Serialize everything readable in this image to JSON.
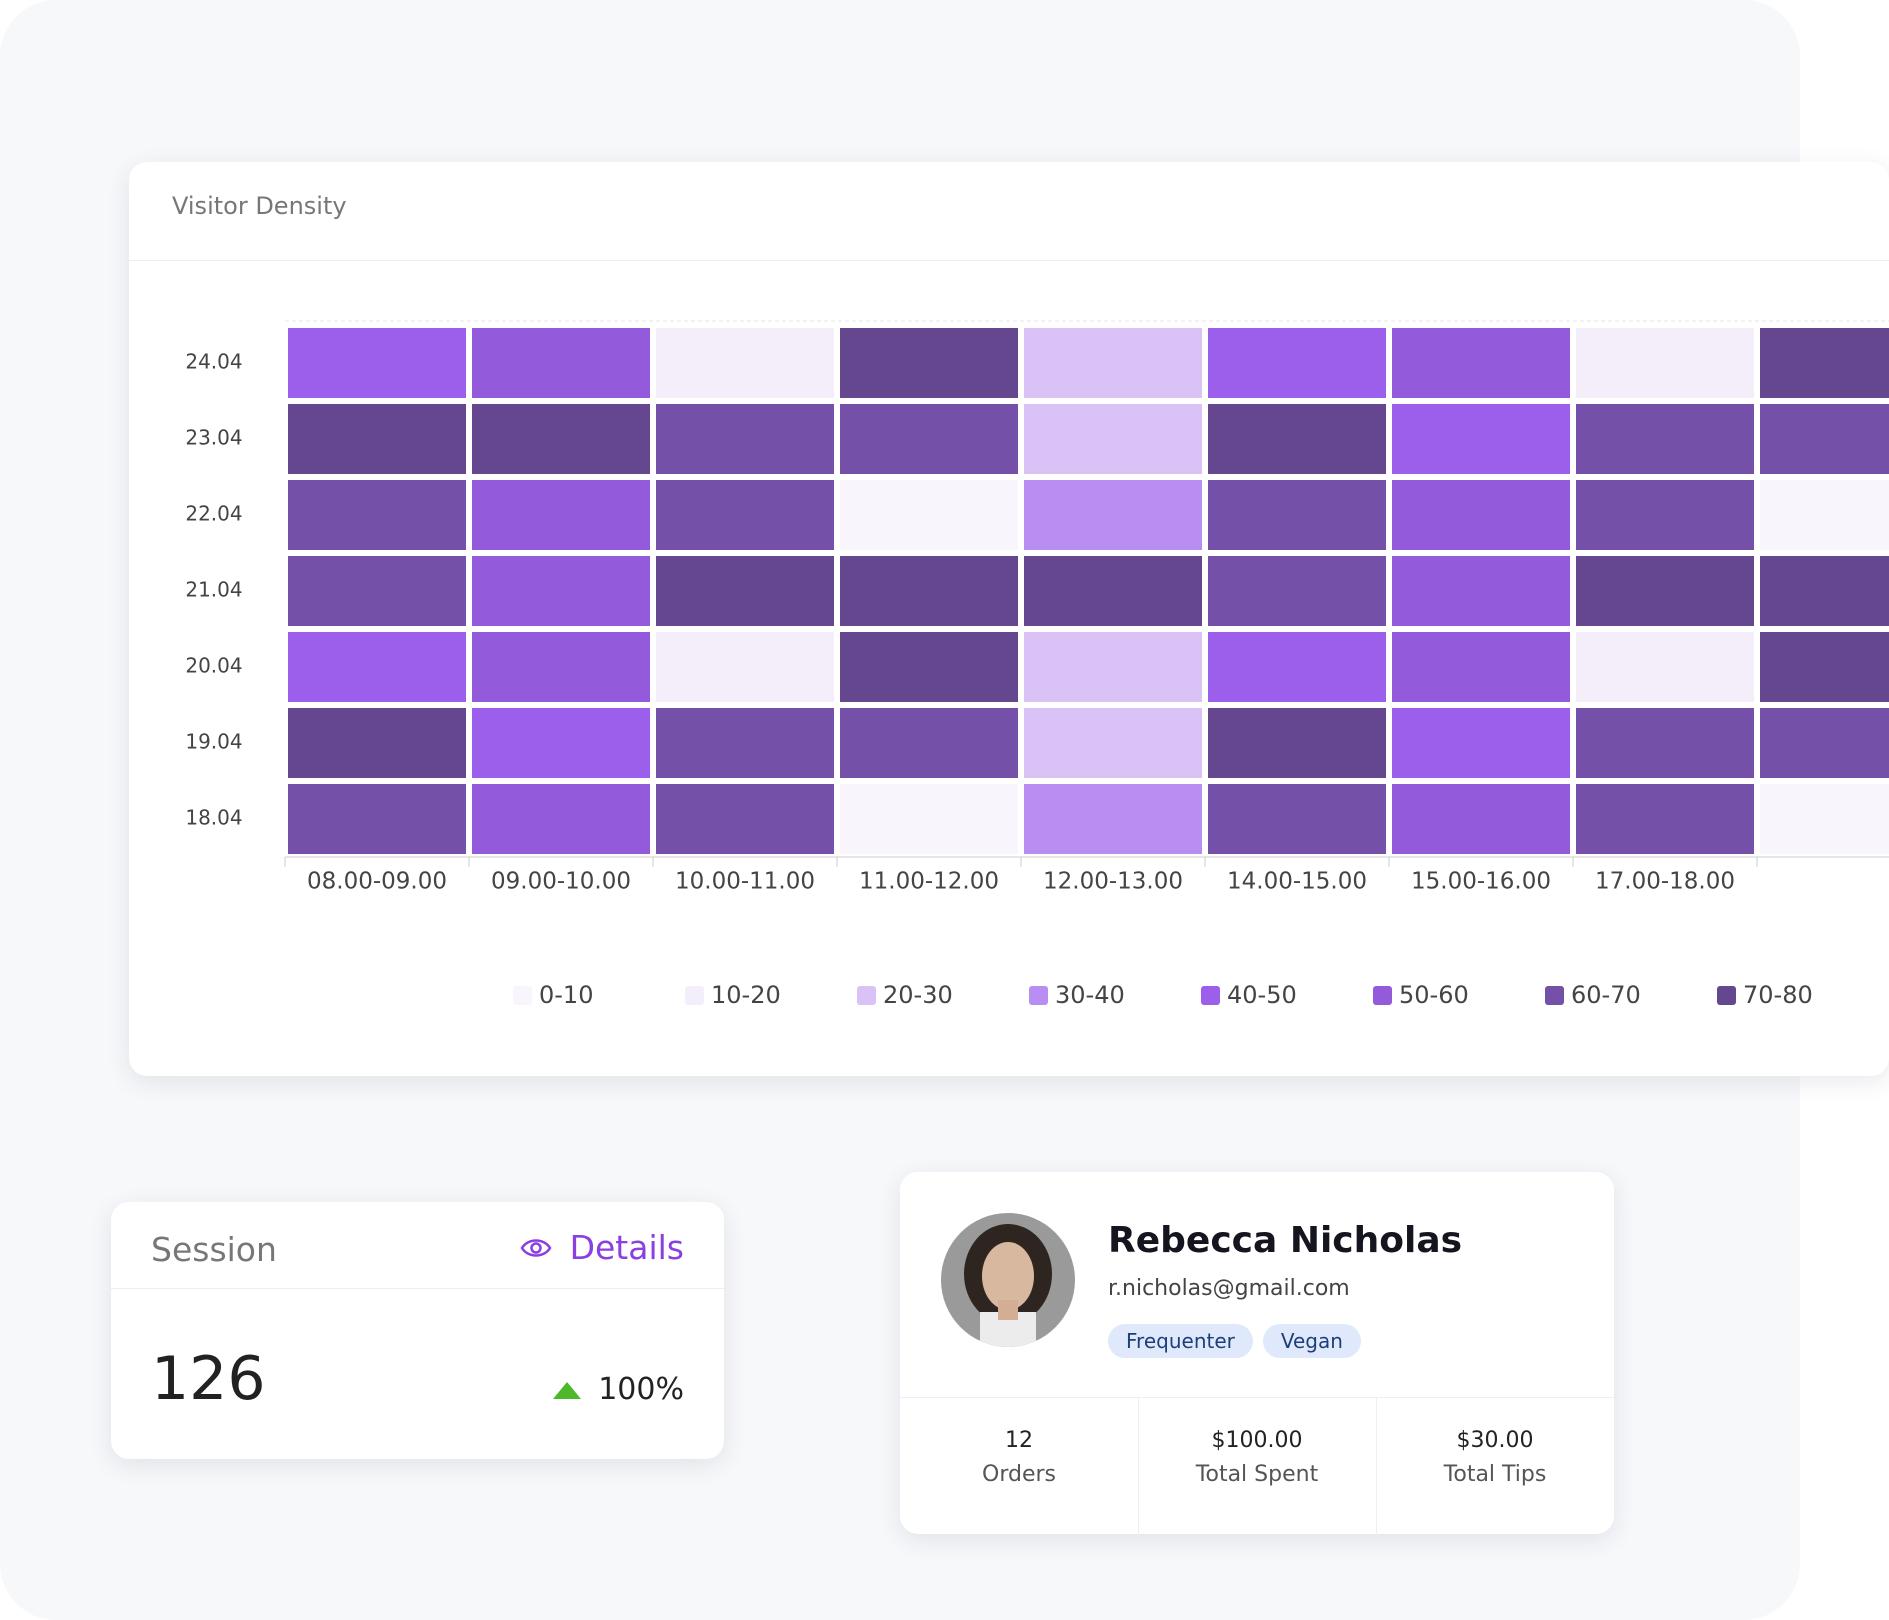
{
  "chart_data": {
    "type": "heatmap",
    "title": "Visitor Density",
    "categories": [
      "08.00-09.00",
      "09.00-10.00",
      "10.00-11.00",
      "11.00-12.00",
      "12.00-13.00",
      "14.00-15.00",
      "15.00-16.00",
      "17.00-18.00",
      null
    ],
    "rows": [
      "24.04",
      "23.04",
      "22.04",
      "21.04",
      "20.04",
      "19.04",
      "18.04"
    ],
    "values": [
      [
        45,
        55,
        15,
        75,
        25,
        45,
        55,
        15,
        75
      ],
      [
        75,
        75,
        65,
        65,
        22,
        75,
        45,
        65,
        65
      ],
      [
        62,
        55,
        62,
        5,
        35,
        62,
        55,
        62,
        5
      ],
      [
        65,
        55,
        75,
        75,
        75,
        65,
        55,
        75,
        75
      ],
      [
        45,
        55,
        15,
        75,
        25,
        45,
        55,
        15,
        75
      ],
      [
        75,
        45,
        65,
        65,
        22,
        75,
        45,
        65,
        65
      ],
      [
        62,
        55,
        62,
        5,
        35,
        62,
        55,
        62,
        5
      ]
    ],
    "legend": [
      "0-10",
      "10-20",
      "20-30",
      "30-40",
      "40-50",
      "50-60",
      "60-70",
      "70-80"
    ],
    "colors": [
      "#f8f6fc",
      "#f3eefa",
      "#dbc2f6",
      "#b98ef2",
      "#9b5fec",
      "#935bdc",
      "#7550a8",
      "#65478f"
    ]
  },
  "session": {
    "title": "Session",
    "action": "Details",
    "value": 126,
    "change": "100%"
  },
  "profile": {
    "name": "Rebecca Nicholas",
    "email": "r.nicholas@gmail.com",
    "tags": [
      "Frequenter",
      "Vegan"
    ],
    "stats": [
      {
        "value": 12,
        "label": "Orders"
      },
      {
        "value": "$100.00",
        "label": "Total Spent"
      },
      {
        "value": "$30.00",
        "label": "Total Tips"
      }
    ]
  }
}
